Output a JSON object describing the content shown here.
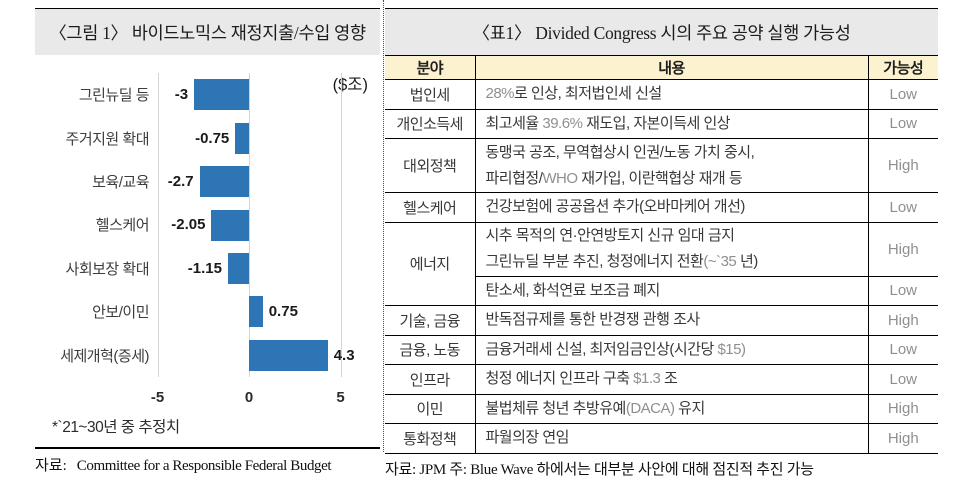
{
  "figure": {
    "title": "〈그림 1〉 바이드노믹스 재정지출/수입 영향",
    "footnote": "*`21~30년 중 추정치",
    "source_prefix": "자료:",
    "source": "Committee for a Responsible Federal Budget"
  },
  "chart_data": {
    "type": "bar",
    "orientation": "horizontal",
    "title": "〈그림 1〉 바이드노믹스 재정지출/수입 영향",
    "unit_label": "($조)",
    "categories": [
      "그린뉴딜 등",
      "주거지원 확대",
      "보육/교육",
      "헬스케어",
      "사회보장 확대",
      "안보/이민",
      "세제개혁(증세)"
    ],
    "values": [
      -3,
      -0.75,
      -2.7,
      -2.05,
      -1.15,
      0.75,
      4.3
    ],
    "value_labels": [
      "-3",
      "-0.75",
      "-2.7",
      "-2.05",
      "-1.15",
      "0.75",
      "4.3"
    ],
    "x_ticks": [
      "-5",
      "0",
      "5"
    ],
    "xlim": [
      -5,
      5
    ],
    "grid": true,
    "legend": false
  },
  "table": {
    "title": "〈표1〉 Divided Congress 시의 주요 공약 실행 가능성",
    "columns": [
      "분야",
      "내용",
      "가능성"
    ],
    "rows": [
      {
        "category": "법인세",
        "span": 1,
        "lines": [
          "28%로 인상, 최저법인세 신설"
        ],
        "likelihood": "Low"
      },
      {
        "category": "개인소득세",
        "span": 1,
        "lines": [
          "최고세율 39.6% 재도입, 자본이득세 인상"
        ],
        "likelihood": "Low"
      },
      {
        "category": "대외정책",
        "span": 1,
        "lines": [
          "동맹국 공조, 무역협상시 인권/노동 가치 중시,",
          "파리협정/WHO 재가입, 이란핵협상 재개 등"
        ],
        "likelihood": "High"
      },
      {
        "category": "헬스케어",
        "span": 1,
        "lines": [
          "건강보험에 공공옵션 추가(오바마케어 개선)"
        ],
        "likelihood": "Low"
      },
      {
        "category": "에너지",
        "span": 2,
        "lines": [
          "시추 목적의 연·안연방토지 신규 임대 금지",
          "그린뉴딜 부분 추진, 청정에너지 전환(~`35 년)"
        ],
        "likelihood": "High"
      },
      {
        "category": null,
        "span": 0,
        "lines": [
          "탄소세, 화석연료 보조금 폐지"
        ],
        "likelihood": "Low"
      },
      {
        "category": "기술, 금융",
        "span": 1,
        "lines": [
          "반독점규제를 통한 반경쟁 관행 조사"
        ],
        "likelihood": "High"
      },
      {
        "category": "금융, 노동",
        "span": 1,
        "lines": [
          "금융거래세 신설, 최저임금인상(시간당 $15)"
        ],
        "likelihood": "Low"
      },
      {
        "category": "인프라",
        "span": 1,
        "lines": [
          "청정 에너지 인프라 구축 $1.3 조"
        ],
        "likelihood": "Low"
      },
      {
        "category": "이민",
        "span": 1,
        "lines": [
          "불법체류 청년 추방유예(DACA) 유지"
        ],
        "likelihood": "High"
      },
      {
        "category": "통화정책",
        "span": 1,
        "lines": [
          "파월의장 연임"
        ],
        "likelihood": "High"
      }
    ],
    "source": "자료: JPM 주: Blue Wave 하에서는 대부분 사안에 대해 점진적 추진 가능"
  },
  "colors": {
    "bar": "#2e75b6",
    "title_bg": "#e9e9e9",
    "header_bg": "#fdf2d0",
    "latin_text": "#8f8f8f",
    "gridline": "#d4d4d4"
  }
}
